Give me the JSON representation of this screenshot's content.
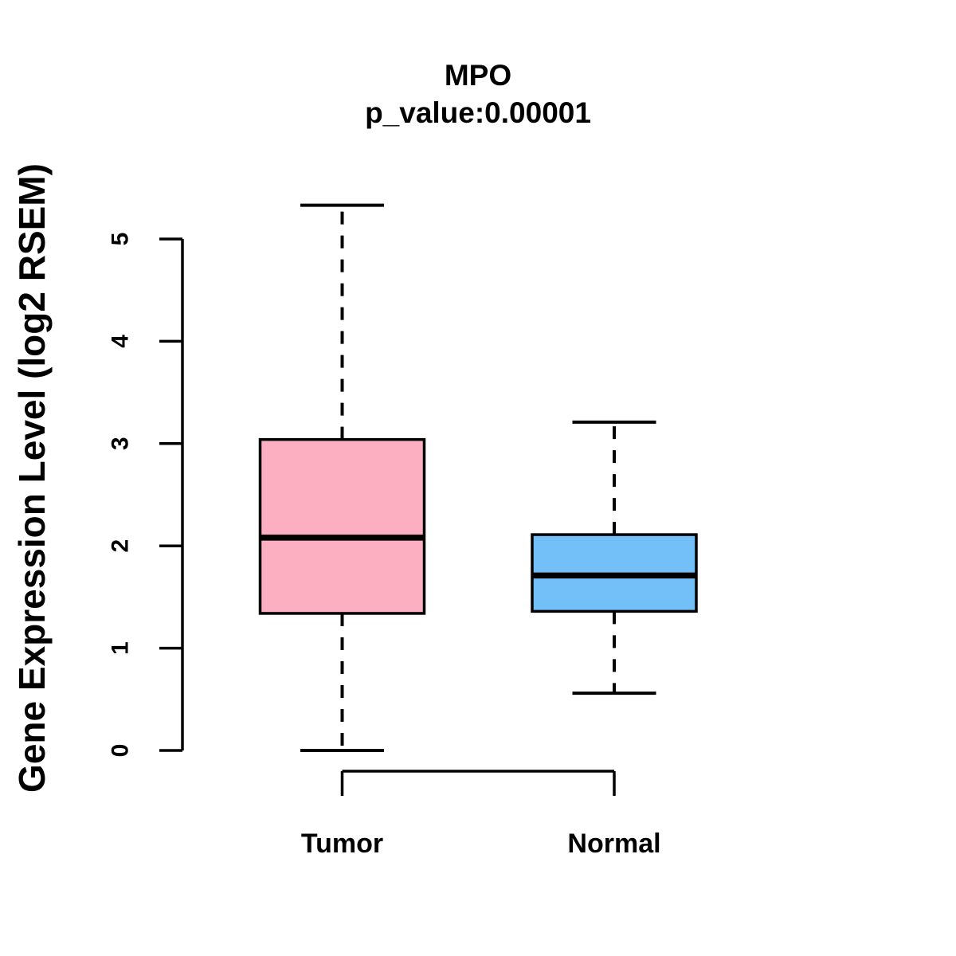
{
  "chart_data": {
    "type": "boxplot",
    "title": "MPO",
    "subtitle": "p_value:0.00001",
    "ylabel": "Gene Expression Level (log2 RSEM)",
    "xlabel": "",
    "ylim": [
      0,
      5
    ],
    "yticks": [
      "0",
      "1",
      "2",
      "3",
      "4",
      "5"
    ],
    "grid": "off",
    "legend": "none",
    "colors": {
      "tumor_fill": "#FCAFC0",
      "normal_fill": "#73BFF7",
      "line": "#000000",
      "background": "#FFFFFF"
    },
    "groups": [
      {
        "label": "Tumor",
        "color": "#FCAFC0",
        "whisker_low": 0.0,
        "q1": 1.34,
        "median": 2.08,
        "q3": 3.04,
        "whisker_high": 5.33
      },
      {
        "label": "Normal",
        "color": "#73BFF7",
        "whisker_low": 0.56,
        "q1": 1.36,
        "median": 1.71,
        "q3": 2.11,
        "whisker_high": 3.21
      }
    ]
  }
}
